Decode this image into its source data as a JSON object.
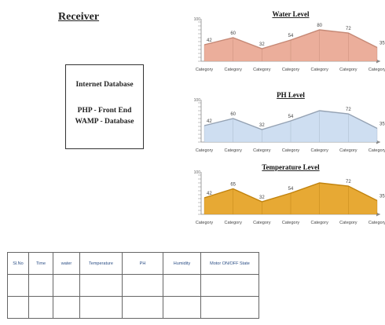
{
  "heading": "Receiver",
  "database_box": {
    "line1": "Internet Database",
    "line2": "PHP - Front End",
    "line3": "WAMP - Database"
  },
  "chart_data": [
    {
      "type": "area",
      "title": "Water Level",
      "categories": [
        "Category",
        "Category",
        "Category",
        "Category",
        "Category",
        "Category",
        "Category"
      ],
      "values": [
        42,
        60,
        32,
        54,
        80,
        72,
        35
      ],
      "value_labels": [
        "42",
        "60",
        "32",
        "54",
        "80",
        "72",
        "35"
      ],
      "ylim": [
        0,
        100
      ],
      "color": "#e8a08a"
    },
    {
      "type": "area",
      "title": "PH Level",
      "categories": [
        "Category",
        "Category",
        "Category",
        "Category",
        "Category",
        "Category",
        "Category"
      ],
      "values": [
        42,
        60,
        32,
        54,
        80,
        72,
        35
      ],
      "value_labels": [
        "42",
        "60",
        "32",
        "54",
        "",
        "72",
        "35"
      ],
      "ylim": [
        0,
        100
      ],
      "color": "#c6d8ee"
    },
    {
      "type": "area",
      "title": "Temperature Level",
      "categories": [
        "Category",
        "Category",
        "Category",
        "Category",
        "Category",
        "Category",
        "Category"
      ],
      "values": [
        42,
        65,
        32,
        54,
        80,
        72,
        35
      ],
      "value_labels": [
        "42",
        "65",
        "32",
        "54",
        "",
        "72",
        "35"
      ],
      "ylim": [
        0,
        100
      ],
      "color": "#e39a10"
    }
  ],
  "table": {
    "headers": [
      "Sl.No",
      "Time",
      "water",
      "Temperature",
      "PH",
      "Humidity",
      "Motor ON/OFF State"
    ],
    "rows": [
      [
        "",
        "",
        "",
        "",
        "",
        "",
        ""
      ],
      [
        "",
        "",
        "",
        "",
        "",
        "",
        ""
      ]
    ]
  }
}
